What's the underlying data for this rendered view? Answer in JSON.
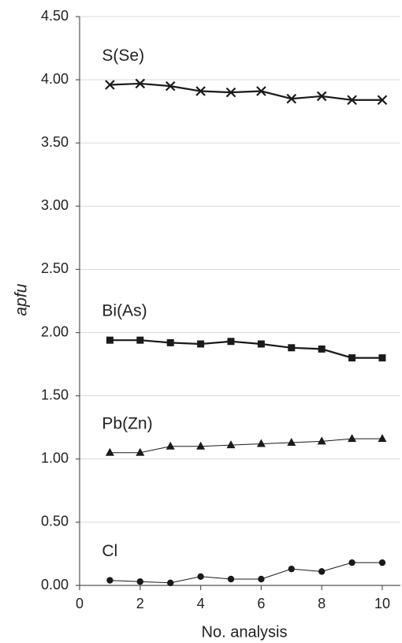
{
  "chart_data": {
    "type": "line",
    "x_label": "No. analysis",
    "y_label": "apfu",
    "x": [
      1,
      2,
      3,
      4,
      5,
      6,
      7,
      8,
      9,
      10
    ],
    "series": [
      {
        "name": "S(Se)",
        "color": "#1a1a1a",
        "marker": "x",
        "line_width": 2.2,
        "values": [
          3.96,
          3.97,
          3.95,
          3.91,
          3.9,
          3.91,
          3.85,
          3.87,
          3.84,
          3.84
        ]
      },
      {
        "name": "Bi(As)",
        "color": "#1a1a1a",
        "marker": "square",
        "line_width": 2.2,
        "values": [
          1.94,
          1.94,
          1.92,
          1.91,
          1.93,
          1.91,
          1.88,
          1.87,
          1.8,
          1.8
        ]
      },
      {
        "name": "Pb(Zn)",
        "color": "#1a1a1a",
        "marker": "triangle",
        "line_width": 1,
        "values": [
          1.05,
          1.05,
          1.1,
          1.1,
          1.11,
          1.12,
          1.13,
          1.14,
          1.16,
          1.16
        ]
      },
      {
        "name": "Cl",
        "color": "#1a1a1a",
        "marker": "circle",
        "line_width": 1,
        "values": [
          0.04,
          0.03,
          0.02,
          0.07,
          0.05,
          0.05,
          0.13,
          0.11,
          0.18,
          0.18
        ]
      }
    ],
    "xlim": [
      0,
      10.6
    ],
    "xticks": [
      0,
      2,
      4,
      6,
      8,
      10
    ],
    "ylim": [
      0,
      4.5
    ],
    "yticks": [
      {
        "value": 0,
        "label": "0.00"
      },
      {
        "value": 0.5,
        "label": "0.50"
      },
      {
        "value": 1,
        "label": "1.00"
      },
      {
        "value": 1.5,
        "label": "1.50"
      },
      {
        "value": 2,
        "label": "2.00"
      },
      {
        "value": 2.5,
        "label": "2.50"
      },
      {
        "value": 3,
        "label": "3.00"
      },
      {
        "value": 3.5,
        "label": "3.50"
      },
      {
        "value": 4,
        "label": "4.00"
      },
      {
        "value": 4.5,
        "label": "4.50"
      }
    ],
    "grid": true
  }
}
